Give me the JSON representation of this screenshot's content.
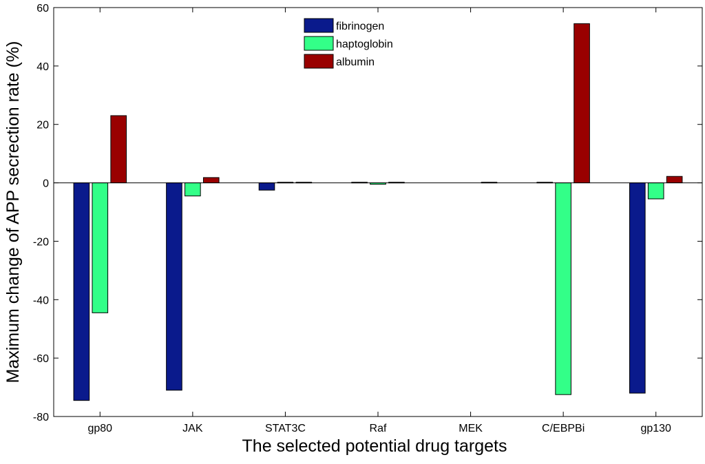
{
  "chart_data": {
    "type": "bar",
    "title": "",
    "xlabel": "The selected potential drug targets",
    "ylabel": "Maximum change of APP secrection rate (%)",
    "ylim": [
      -80,
      60
    ],
    "yticks": [
      -80,
      -60,
      -40,
      -20,
      0,
      20,
      40,
      60
    ],
    "ytick_labels": [
      "-80",
      "-60",
      "-40",
      "-20",
      "0",
      "20",
      "40",
      "60"
    ],
    "categories": [
      "gp80",
      "JAK",
      "STAT3C",
      "Raf",
      "MEK",
      "C/EBPBi",
      "gp130"
    ],
    "legend_position": "top-center",
    "series": [
      {
        "name": "fibrinogen",
        "color": "#0a1a8c",
        "values": [
          -74.5,
          -71,
          -2.5,
          0.2,
          0,
          0.2,
          -72
        ]
      },
      {
        "name": "haptoglobin",
        "color": "#33ff88",
        "values": [
          -44.5,
          -4.5,
          0.2,
          -0.5,
          0,
          -72.5,
          -5.5
        ]
      },
      {
        "name": "albumin",
        "color": "#990000",
        "values": [
          23,
          1.8,
          0.2,
          0.2,
          0.2,
          54.5,
          2.2
        ]
      }
    ]
  }
}
